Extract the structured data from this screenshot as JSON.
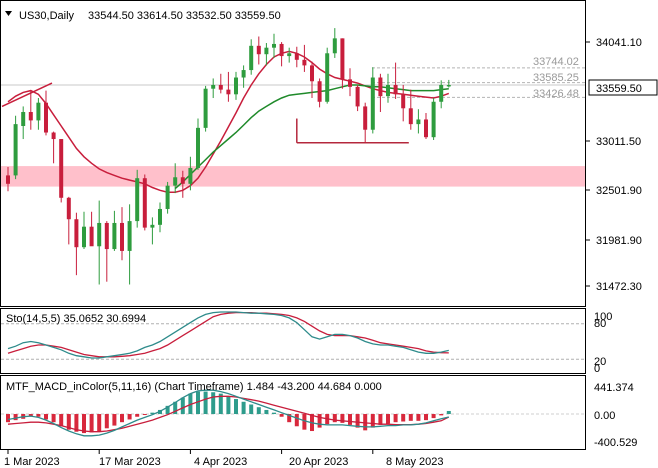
{
  "header": {
    "symbol_label": "US30,Daily",
    "ohlc": "33544.50 33614.50 33532.50 33559.50"
  },
  "colors": {
    "bull": "#2e9c3e",
    "bear": "#c81e3c",
    "ma_red": "#c81e3c",
    "ma_green": "#1f8a2a",
    "zone": "#ffc0cb",
    "hline": "#b4b4b4",
    "stoch_main": "#2e8b8b",
    "stoch_signal": "#c81e3c",
    "macd_pos": "#2e9c8c",
    "macd_neg": "#d8283c",
    "macd_line": "#2e8b8b",
    "signal_line": "#c81e3c",
    "support_line": "#b4283c"
  },
  "price_axis": {
    "ticks": [
      "34041.10",
      "33011.50",
      "32501.90",
      "31981.90",
      "31472.30"
    ],
    "current": "33559.50"
  },
  "hlines": [
    {
      "label": "33744.02",
      "value": 33744.02
    },
    {
      "label": "33585.25",
      "value": 33585.25
    },
    {
      "label": "33426.48",
      "value": 33426.48
    }
  ],
  "zone": {
    "low": 32470,
    "high": 32690
  },
  "support": {
    "value": 32940,
    "from_bar": 38,
    "to_bar": 50
  },
  "chart_data": [
    {
      "type": "candlestick",
      "title": "US30,Daily",
      "ylim": [
        31200,
        34450
      ],
      "candles": [
        {
          "o": 32590,
          "h": 32680,
          "l": 32420,
          "c": 32500
        },
        {
          "o": 32590,
          "h": 33230,
          "l": 32550,
          "c": 33140
        },
        {
          "o": 33120,
          "h": 33330,
          "l": 32980,
          "c": 33270
        },
        {
          "o": 33270,
          "h": 33500,
          "l": 33080,
          "c": 33180
        },
        {
          "o": 33180,
          "h": 33420,
          "l": 33080,
          "c": 33370
        },
        {
          "o": 33370,
          "h": 33500,
          "l": 33020,
          "c": 33050
        },
        {
          "o": 33050,
          "h": 33060,
          "l": 32720,
          "c": 32980
        },
        {
          "o": 32980,
          "h": 32980,
          "l": 32300,
          "c": 32350
        },
        {
          "o": 32350,
          "h": 32360,
          "l": 31850,
          "c": 32120
        },
        {
          "o": 32120,
          "h": 32190,
          "l": 31520,
          "c": 31820
        },
        {
          "o": 31820,
          "h": 32200,
          "l": 31800,
          "c": 32040
        },
        {
          "o": 32040,
          "h": 32200,
          "l": 31850,
          "c": 31830
        },
        {
          "o": 31830,
          "h": 32320,
          "l": 31420,
          "c": 32080
        },
        {
          "o": 32080,
          "h": 32100,
          "l": 31450,
          "c": 31800
        },
        {
          "o": 31800,
          "h": 32210,
          "l": 31780,
          "c": 32080
        },
        {
          "o": 32080,
          "h": 32250,
          "l": 31680,
          "c": 31780
        },
        {
          "o": 31780,
          "h": 32280,
          "l": 31420,
          "c": 32100
        },
        {
          "o": 32100,
          "h": 32650,
          "l": 32030,
          "c": 32560
        },
        {
          "o": 32560,
          "h": 32600,
          "l": 32000,
          "c": 32030
        },
        {
          "o": 32030,
          "h": 32140,
          "l": 31850,
          "c": 32060
        },
        {
          "o": 32060,
          "h": 32300,
          "l": 31980,
          "c": 32230
        },
        {
          "o": 32230,
          "h": 32520,
          "l": 32180,
          "c": 32480
        },
        {
          "o": 32480,
          "h": 32720,
          "l": 32400,
          "c": 32570
        },
        {
          "o": 32570,
          "h": 32640,
          "l": 32350,
          "c": 32500
        },
        {
          "o": 32500,
          "h": 32790,
          "l": 32430,
          "c": 32670
        },
        {
          "o": 32670,
          "h": 33200,
          "l": 32650,
          "c": 33100
        },
        {
          "o": 33100,
          "h": 33550,
          "l": 33060,
          "c": 33520
        },
        {
          "o": 33520,
          "h": 33630,
          "l": 33420,
          "c": 33560
        },
        {
          "o": 33560,
          "h": 33680,
          "l": 33470,
          "c": 33510
        },
        {
          "o": 33510,
          "h": 33700,
          "l": 33380,
          "c": 33460
        },
        {
          "o": 33460,
          "h": 33700,
          "l": 33400,
          "c": 33640
        },
        {
          "o": 33640,
          "h": 33770,
          "l": 33530,
          "c": 33720
        },
        {
          "o": 33720,
          "h": 34050,
          "l": 33670,
          "c": 33980
        },
        {
          "o": 33980,
          "h": 34080,
          "l": 33780,
          "c": 33890
        },
        {
          "o": 33890,
          "h": 34010,
          "l": 33770,
          "c": 33960
        },
        {
          "o": 33960,
          "h": 34110,
          "l": 33850,
          "c": 34000
        },
        {
          "o": 34000,
          "h": 34020,
          "l": 33760,
          "c": 33870
        },
        {
          "o": 33870,
          "h": 33960,
          "l": 33800,
          "c": 33900
        },
        {
          "o": 33900,
          "h": 33970,
          "l": 33750,
          "c": 33830
        },
        {
          "o": 33830,
          "h": 33990,
          "l": 33700,
          "c": 33770
        },
        {
          "o": 33770,
          "h": 33810,
          "l": 33420,
          "c": 33600
        },
        {
          "o": 33600,
          "h": 33630,
          "l": 33320,
          "c": 33380
        },
        {
          "o": 33380,
          "h": 33960,
          "l": 33360,
          "c": 33900
        },
        {
          "o": 33900,
          "h": 34170,
          "l": 33850,
          "c": 34060
        },
        {
          "o": 34060,
          "h": 34060,
          "l": 33520,
          "c": 33620
        },
        {
          "o": 33620,
          "h": 33740,
          "l": 33440,
          "c": 33540
        },
        {
          "o": 33540,
          "h": 33560,
          "l": 33280,
          "c": 33330
        },
        {
          "o": 33330,
          "h": 33370,
          "l": 32940,
          "c": 33080
        },
        {
          "o": 33080,
          "h": 33750,
          "l": 33040,
          "c": 33640
        },
        {
          "o": 33640,
          "h": 33680,
          "l": 33270,
          "c": 33440
        },
        {
          "o": 33440,
          "h": 33680,
          "l": 33370,
          "c": 33560
        },
        {
          "o": 33560,
          "h": 33800,
          "l": 33410,
          "c": 33460
        },
        {
          "o": 33460,
          "h": 33560,
          "l": 33170,
          "c": 33310
        },
        {
          "o": 33310,
          "h": 33510,
          "l": 33080,
          "c": 33140
        },
        {
          "o": 33140,
          "h": 33300,
          "l": 33040,
          "c": 33190
        },
        {
          "o": 33190,
          "h": 33260,
          "l": 32980,
          "c": 33000
        },
        {
          "o": 33000,
          "h": 33420,
          "l": 32970,
          "c": 33380
        },
        {
          "o": 33380,
          "h": 33610,
          "l": 33310,
          "c": 33560
        },
        {
          "o": 33544.5,
          "h": 33614.5,
          "l": 33532.5,
          "c": 33559.5
        }
      ],
      "ma_red": [
        33380,
        33440,
        33480,
        33500,
        33460,
        33360,
        33240,
        33120,
        33000,
        32880,
        32790,
        32720,
        32660,
        32620,
        32590,
        32560,
        32540,
        32520,
        32500,
        32460,
        32430,
        32410,
        32410,
        32430,
        32480,
        32560,
        32680,
        32820,
        32960,
        33110,
        33260,
        33420,
        33560,
        33680,
        33780,
        33860,
        33900,
        33920,
        33900,
        33860,
        33800,
        33730,
        33680,
        33640,
        33620,
        33600,
        33580,
        33550,
        33520,
        33500,
        33480,
        33470,
        33460,
        33450,
        33440,
        33430,
        33420,
        33440,
        33470
      ],
      "ma_green": [
        null,
        null,
        null,
        null,
        null,
        null,
        null,
        null,
        null,
        null,
        null,
        null,
        null,
        null,
        null,
        null,
        null,
        null,
        null,
        null,
        null,
        null,
        32450,
        32520,
        32600,
        32680,
        32760,
        32840,
        32910,
        32980,
        33050,
        33130,
        33210,
        33280,
        33330,
        33380,
        33420,
        33450,
        33460,
        33470,
        33480,
        33490,
        33500,
        33520,
        33540,
        33560,
        33560,
        33550,
        33540,
        33540,
        33530,
        33520,
        33510,
        33500,
        33500,
        33500,
        33500,
        33510,
        33520
      ]
    },
    {
      "type": "line",
      "title": "Sto(14,5,5) 35.0652 30.6994",
      "ylim": [
        0,
        100
      ],
      "ticks": [
        "100",
        "80",
        "20",
        "0"
      ],
      "series": [
        {
          "name": "Sto main",
          "values": [
            38,
            42,
            48,
            50,
            48,
            44,
            40,
            36,
            30,
            26,
            24,
            22,
            22,
            24,
            26,
            28,
            30,
            34,
            40,
            44,
            50,
            58,
            66,
            74,
            82,
            90,
            96,
            99,
            100,
            100,
            100,
            99,
            98,
            98,
            97,
            96,
            94,
            90,
            82,
            70,
            58,
            54,
            58,
            62,
            62,
            60,
            56,
            50,
            46,
            44,
            44,
            42,
            40,
            36,
            32,
            30,
            30,
            32,
            35
          ]
        },
        {
          "name": "Sto signal",
          "values": [
            30,
            34,
            38,
            42,
            44,
            44,
            42,
            40,
            36,
            32,
            28,
            26,
            24,
            24,
            24,
            25,
            26,
            28,
            30,
            34,
            38,
            44,
            52,
            60,
            68,
            76,
            84,
            92,
            96,
            98,
            99,
            99,
            99,
            98,
            98,
            97,
            96,
            94,
            90,
            84,
            76,
            68,
            62,
            60,
            60,
            60,
            58,
            56,
            52,
            48,
            46,
            44,
            42,
            40,
            38,
            34,
            32,
            31,
            30.7
          ]
        }
      ]
    },
    {
      "type": "bar",
      "title": "MTF_MACD_inColor(5,11,16) (Chart Timeframe) 1.484 -43.200 44.684 0.000",
      "ylim": [
        -470,
        500
      ],
      "ticks": [
        "441.374",
        "0.00",
        "-400.529"
      ],
      "values": [
        -120,
        -90,
        -70,
        -30,
        -40,
        -80,
        -120,
        -180,
        -230,
        -260,
        -280,
        -270,
        -250,
        -210,
        -170,
        -120,
        -80,
        -40,
        -10,
        20,
        60,
        120,
        180,
        240,
        300,
        330,
        330,
        320,
        300,
        260,
        220,
        180,
        140,
        100,
        60,
        20,
        -40,
        -120,
        -180,
        -230,
        -250,
        -200,
        -150,
        -120,
        -130,
        -160,
        -200,
        -240,
        -200,
        -160,
        -140,
        -120,
        -110,
        -100,
        -100,
        -90,
        -60,
        -20,
        44.684
      ],
      "series": [
        {
          "name": "MACD",
          "values": [
            -80,
            -60,
            -40,
            -30,
            -50,
            -90,
            -140,
            -200,
            -250,
            -290,
            -320,
            -320,
            -310,
            -280,
            -240,
            -190,
            -140,
            -90,
            -50,
            -10,
            40,
            100,
            170,
            240,
            300,
            340,
            350,
            350,
            330,
            300,
            260,
            220,
            180,
            140,
            100,
            60,
            20,
            -20,
            -60,
            -100,
            -130,
            -150,
            -160,
            -160,
            -160,
            -170,
            -180,
            -190,
            -190,
            -180,
            -170,
            -170,
            -160,
            -160,
            -150,
            -130,
            -100,
            -70,
            -43.2
          ]
        },
        {
          "name": "Signal",
          "values": [
            -150,
            -140,
            -130,
            -120,
            -120,
            -130,
            -150,
            -170,
            -200,
            -230,
            -250,
            -260,
            -260,
            -250,
            -230,
            -210,
            -180,
            -150,
            -120,
            -90,
            -50,
            -10,
            40,
            90,
            140,
            180,
            220,
            250,
            260,
            260,
            250,
            230,
            210,
            190,
            160,
            130,
            100,
            70,
            40,
            10,
            -20,
            -50,
            -70,
            -90,
            -100,
            -110,
            -120,
            -130,
            -140,
            -150,
            -150,
            -155,
            -155,
            -155,
            -150,
            -140,
            -120,
            -100,
            -44.684
          ]
        }
      ]
    }
  ],
  "time_axis": {
    "labels": [
      {
        "text": "1 Mar 2023",
        "bar": 0
      },
      {
        "text": "17 Mar 2023",
        "bar": 12
      },
      {
        "text": "4 Apr 2023",
        "bar": 24
      },
      {
        "text": "20 Apr 2023",
        "bar": 36
      },
      {
        "text": "8 May 2023",
        "bar": 48
      }
    ]
  }
}
